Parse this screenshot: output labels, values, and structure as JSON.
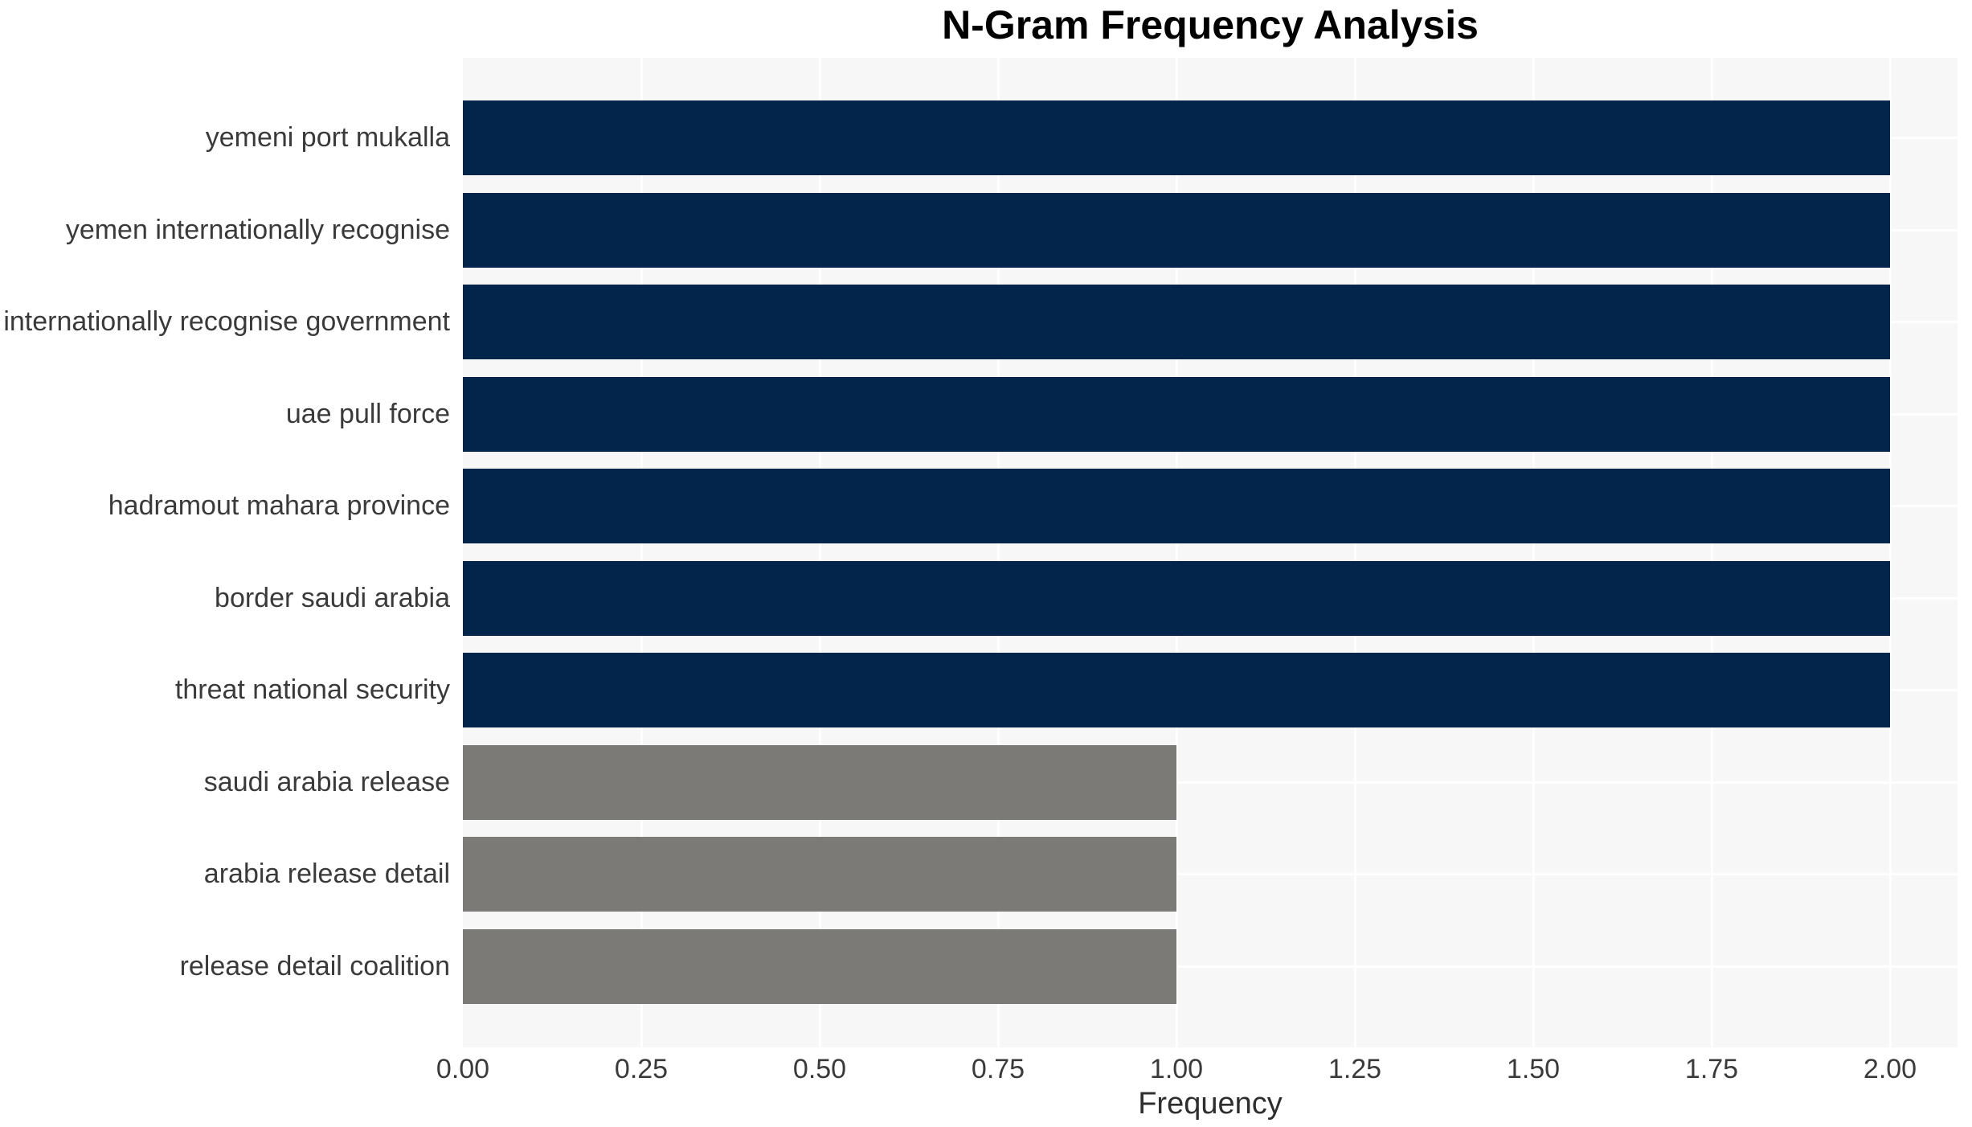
{
  "chart_data": {
    "type": "bar",
    "orientation": "horizontal",
    "title": "N-Gram Frequency Analysis",
    "xlabel": "Frequency",
    "ylabel": "",
    "categories": [
      "yemeni port mukalla",
      "yemen internationally recognise",
      "internationally recognise government",
      "uae pull force",
      "hadramout mahara province",
      "border saudi arabia",
      "threat national security",
      "saudi arabia release",
      "arabia release detail",
      "release detail coalition"
    ],
    "values": [
      2,
      2,
      2,
      2,
      2,
      2,
      2,
      1,
      1,
      1
    ],
    "bar_colors": [
      "#03254c",
      "#03254c",
      "#03254c",
      "#03254c",
      "#03254c",
      "#03254c",
      "#03254c",
      "#7b7a77",
      "#7b7a77",
      "#7b7a77"
    ],
    "xticks": [
      "0.00",
      "0.25",
      "0.50",
      "0.75",
      "1.00",
      "1.25",
      "1.50",
      "1.75",
      "2.00"
    ],
    "xlim": [
      0,
      2.095
    ],
    "grid": true,
    "legend_position": "none",
    "colors": {
      "high_freq_bar": "#03254c",
      "low_freq_bar": "#7b7a77",
      "plot_background": "#f7f7f7",
      "gridline": "#ffffff",
      "axis_text": "#3a3a3a",
      "title_text": "#000000"
    }
  }
}
